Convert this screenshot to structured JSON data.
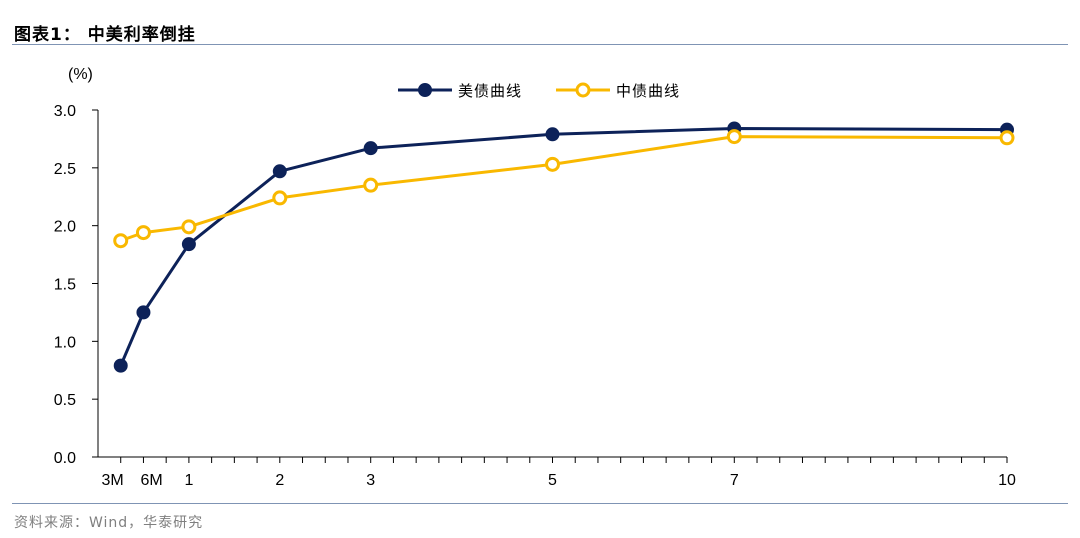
{
  "header": {
    "title": "图表1： 中美利率倒挂"
  },
  "footer": {
    "source": "资料来源：Wind，华泰研究"
  },
  "chart_data": {
    "type": "line",
    "title": "",
    "ylabel": "(%)",
    "xlabel": "",
    "ylim": [
      0,
      3.0
    ],
    "yticks": [
      "0.0",
      "0.5",
      "1.0",
      "1.5",
      "2.0",
      "2.5",
      "3.0"
    ],
    "x": [
      0.25,
      0.5,
      1,
      2,
      3,
      5,
      7,
      10
    ],
    "xtick_labels": [
      "3M",
      "6M",
      "1",
      "2",
      "3",
      "5",
      "7",
      "10"
    ],
    "xlim": [
      0,
      10
    ],
    "legend_position": "top-center",
    "series": [
      {
        "name": "美债曲线",
        "color": "#0d2259",
        "marker": "filled-circle",
        "values": [
          0.79,
          1.25,
          1.84,
          2.47,
          2.67,
          2.79,
          2.84,
          2.83
        ]
      },
      {
        "name": "中债曲线",
        "color": "#f9b800",
        "marker": "hollow-circle",
        "values": [
          1.87,
          1.94,
          1.99,
          2.24,
          2.35,
          2.53,
          2.77,
          2.76
        ]
      }
    ]
  }
}
